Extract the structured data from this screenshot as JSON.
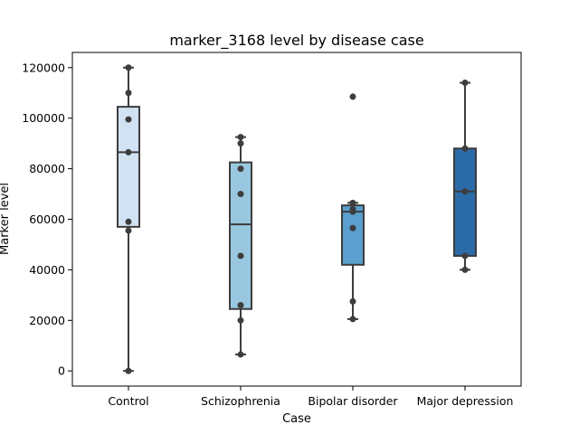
{
  "chart_data": {
    "type": "box",
    "title": "marker_3168 level by disease case",
    "xlabel": "Case",
    "ylabel": "Marker level",
    "ylim": [
      -6000,
      126000
    ],
    "yticks": [
      0,
      20000,
      40000,
      60000,
      80000,
      100000,
      120000
    ],
    "ytick_labels": [
      "0",
      "20000",
      "40000",
      "60000",
      "80000",
      "100000",
      "120000"
    ],
    "grid": false,
    "legend": "none",
    "categories": [
      "Control",
      "Schizophrenia",
      "Bipolar disorder",
      "Major depression"
    ],
    "boxes": [
      {
        "name": "Control",
        "color": "#d1e2f2",
        "whisker_low": 0,
        "q1": 57000,
        "median": 86500,
        "q3": 104500,
        "whisker_high": 120000,
        "outliers": []
      },
      {
        "name": "Schizophrenia",
        "color": "#9ac7e0",
        "whisker_low": 6500,
        "q1": 24500,
        "median": 58000,
        "q3": 82500,
        "whisker_high": 92500,
        "outliers": []
      },
      {
        "name": "Bipolar disorder",
        "color": "#5a9fcd",
        "whisker_low": 20500,
        "q1": 42000,
        "median": 63000,
        "q3": 65500,
        "whisker_high": 66500,
        "outliers": [
          108500
        ]
      },
      {
        "name": "Major depression",
        "color": "#2b6ba8",
        "whisker_low": 40000,
        "q1": 45500,
        "median": 71000,
        "q3": 88000,
        "whisker_high": 114000,
        "outliers": []
      }
    ],
    "points": [
      [
        0,
        120000,
        110000,
        99500,
        86500,
        59000,
        55500
      ],
      [
        92500,
        90000,
        80000,
        70000,
        45500,
        26000,
        20000,
        6500
      ],
      [
        108500,
        66500,
        64000,
        63000,
        56500,
        27500,
        20500
      ],
      [
        114000,
        88000,
        71000,
        45500,
        40000
      ]
    ],
    "colors": {
      "axis": "#000000",
      "box_edge": "#3d3d3d",
      "point": "#3d3d3d"
    }
  }
}
